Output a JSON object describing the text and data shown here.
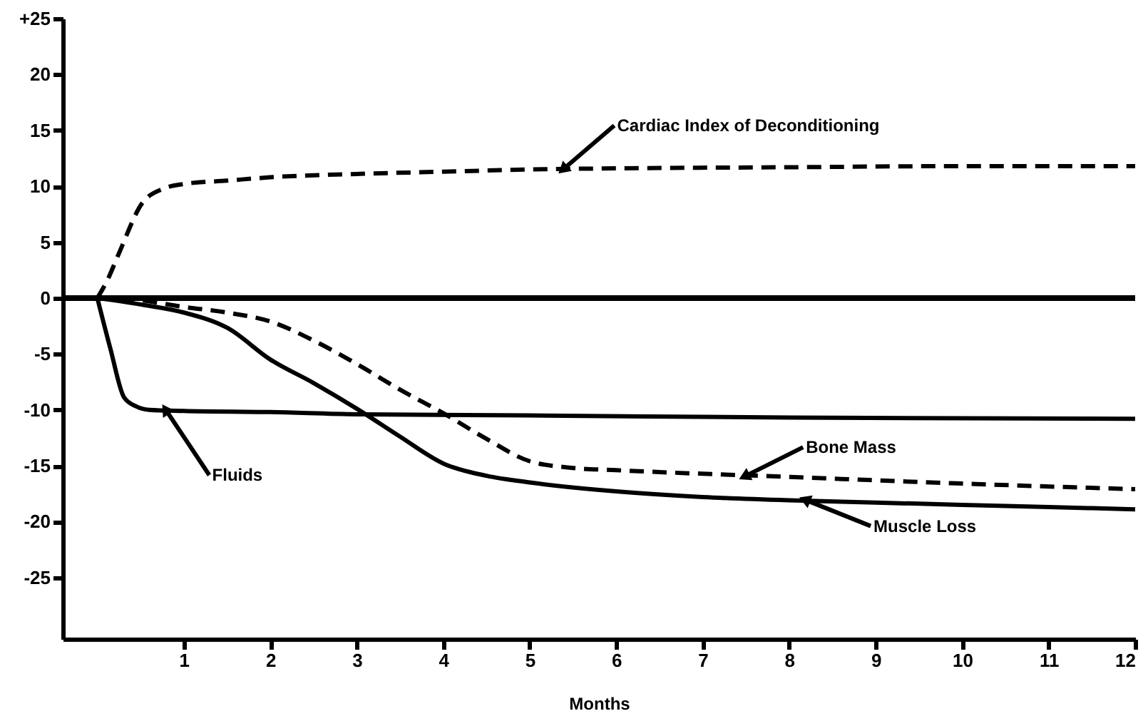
{
  "chart_data": {
    "type": "line",
    "xlabel": "Months",
    "xlim": [
      -0.4,
      12
    ],
    "ylim": [
      -30.5,
      25
    ],
    "xticks": [
      1,
      2,
      3,
      4,
      5,
      6,
      7,
      8,
      9,
      10,
      11,
      12
    ],
    "yticks": [
      {
        "value": 25,
        "label": "+25"
      },
      20,
      15,
      10,
      5,
      0,
      -5,
      -10,
      -15,
      -20,
      -25
    ],
    "ref_lines": [
      {
        "axis": "y",
        "value": 0,
        "color": "#000000"
      }
    ],
    "series": [
      {
        "color": "#000000",
        "line_style": "dashed",
        "x": [
          0,
          0.11,
          0.25,
          0.52,
          0.77,
          1,
          1.5,
          2,
          3,
          4,
          5,
          6,
          8,
          10,
          12
        ],
        "values": [
          0,
          1.5,
          4,
          8.5,
          9.8,
          10.2,
          10.5,
          10.8,
          11.1,
          11.3,
          11.5,
          11.6,
          11.7,
          11.8,
          11.8
        ]
      },
      {
        "color": "#000000",
        "line_style": "dashed",
        "x": [
          0,
          0.5,
          1,
          1.5,
          2,
          2.5,
          3,
          3.5,
          4,
          4.5,
          5,
          5.5,
          6,
          8,
          10,
          12
        ],
        "values": [
          0,
          -0.2,
          -0.8,
          -1.3,
          -2.1,
          -3.8,
          -5.9,
          -8.2,
          -10.3,
          -12.6,
          -14.6,
          -15.2,
          -15.4,
          -16,
          -16.6,
          -17.1
        ]
      },
      {
        "color": "#000000",
        "line_style": "solid",
        "x": [
          0,
          0.52,
          1,
          1.51,
          2,
          2.5,
          3,
          3.5,
          4,
          4.5,
          5,
          6,
          7,
          8,
          9,
          10,
          11,
          12
        ],
        "values": [
          0,
          -0.6,
          -1.3,
          -2.7,
          -5.5,
          -7.6,
          -9.9,
          -12.4,
          -14.8,
          -15.9,
          -16.5,
          -17.3,
          -17.8,
          -18.1,
          -18.3,
          -18.5,
          -18.7,
          -18.9
        ]
      },
      {
        "color": "#000000",
        "line_style": "solid",
        "x": [
          0,
          0.15,
          0.31,
          0.45,
          0.6,
          1,
          2,
          3,
          5,
          8,
          12
        ],
        "values": [
          0,
          -4.5,
          -8.9,
          -9.7,
          -10,
          -10.1,
          -10.2,
          -10.4,
          -10.5,
          -10.7,
          -10.8
        ]
      }
    ],
    "annotations": [
      {
        "text": "Cardiac Index of Deconditioning",
        "x": 5.4,
        "y": 11.6
      },
      {
        "text": "Bone Mass",
        "x": 7.5,
        "y": -15.9
      },
      {
        "text": "Muscle Loss",
        "x": 8.2,
        "y": -18.1
      },
      {
        "text": "Fluids",
        "x": 0.8,
        "y": -10.1
      }
    ]
  }
}
